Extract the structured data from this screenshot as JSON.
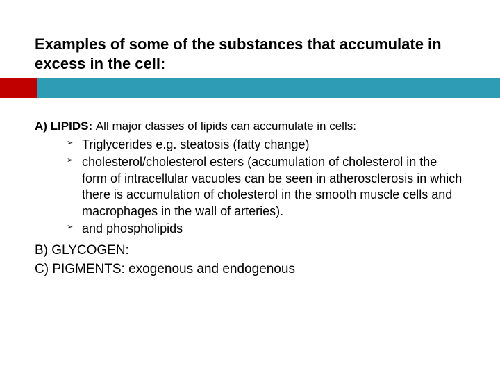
{
  "title": "Examples of some of the substances that accumulate in excess in the cell:",
  "colors": {
    "accent_red": "#c00000",
    "accent_teal": "#2e9cb5",
    "text": "#000000",
    "background": "#ffffff"
  },
  "sections": {
    "a": {
      "heading": "A) LIPIDS: ",
      "rest": "All major classes of lipids can accumulate in cells:",
      "bullets": [
        "Triglycerides e.g. steatosis (fatty change)",
        "cholesterol/cholesterol esters (accumulation of cholesterol in the form of intracellular vacuoles can be seen in atherosclerosis in which there is  accumulation of cholesterol in the smooth muscle cells and macrophages in the wall of arteries).",
        "and phospholipids"
      ]
    },
    "b": {
      "line": "B) GLYCOGEN:"
    },
    "c": {
      "line": "C) PIGMENTS: exogenous and endogenous"
    }
  }
}
